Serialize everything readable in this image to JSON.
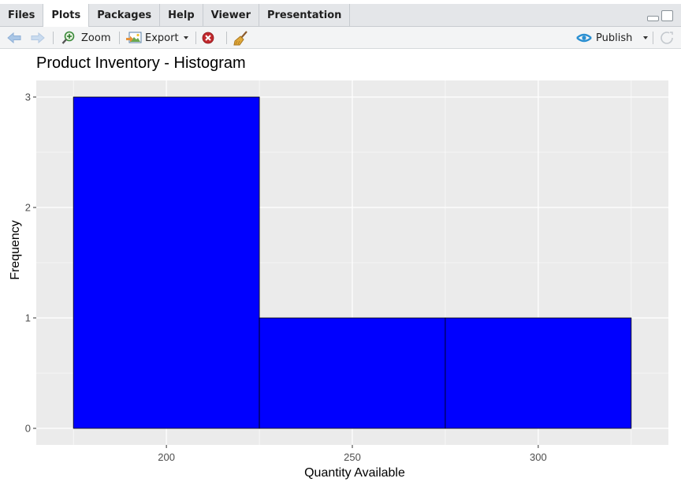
{
  "tabs": [
    {
      "label": "Files",
      "active": false
    },
    {
      "label": "Plots",
      "active": true
    },
    {
      "label": "Packages",
      "active": false
    },
    {
      "label": "Help",
      "active": false
    },
    {
      "label": "Viewer",
      "active": false
    },
    {
      "label": "Presentation",
      "active": false
    }
  ],
  "toolbar": {
    "zoom_label": "Zoom",
    "export_label": "Export",
    "publish_label": "Publish"
  },
  "colors": {
    "bar_fill": "#0000ff",
    "bar_stroke": "#000000",
    "panel_bg": "#ebebeb",
    "grid": "#ffffff",
    "accent": "#2a8fd1"
  },
  "chart_data": {
    "type": "bar",
    "title": "Product Inventory - Histogram",
    "xlabel": "Quantity Available",
    "ylabel": "Frequency",
    "bins": [
      {
        "x0": 175,
        "x1": 225,
        "count": 3
      },
      {
        "x0": 225,
        "x1": 275,
        "count": 1
      },
      {
        "x0": 275,
        "x1": 325,
        "count": 1
      }
    ],
    "xlim": [
      165,
      335
    ],
    "ylim": [
      -0.15,
      3.15
    ],
    "x_ticks": [
      200,
      250,
      300
    ],
    "y_ticks": [
      0,
      1,
      2,
      3
    ],
    "grid": true
  }
}
